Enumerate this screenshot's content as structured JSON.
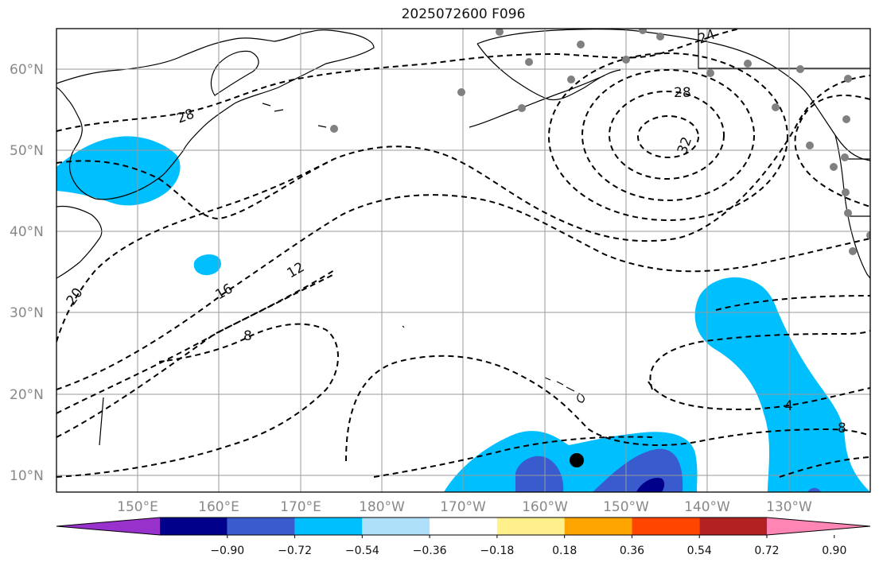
{
  "title": "2025072600 F096",
  "latitude_labels": [
    "60°N",
    "50°N",
    "40°N",
    "30°N",
    "20°N",
    "10°N"
  ],
  "longitude_labels": [
    "150°E",
    "160°E",
    "170°E",
    "180°W",
    "170°W",
    "160°W",
    "150°W",
    "140°W",
    "130°W"
  ],
  "contour_labels": [
    "24",
    "28",
    "28",
    "32",
    "12",
    "16",
    "20",
    "8",
    "4",
    "8"
  ],
  "colorbar": {
    "colors": [
      "#9932cc",
      "#00008b",
      "#3a5bcd",
      "#00bfff",
      "#afe0fa",
      "#ffffff",
      "#fff08c",
      "#ffa500",
      "#ff4500",
      "#b22222",
      "#ff85b4"
    ],
    "tick_labels": [
      "−0.90",
      "−0.72",
      "−0.54",
      "−0.36",
      "−0.18",
      "0.18",
      "0.36",
      "0.54",
      "0.72",
      "0.90"
    ]
  },
  "colors": {
    "land_outline": "#000000",
    "grid": "#9a9a9a",
    "station_dot": "#808080",
    "marker": "#000000"
  }
}
